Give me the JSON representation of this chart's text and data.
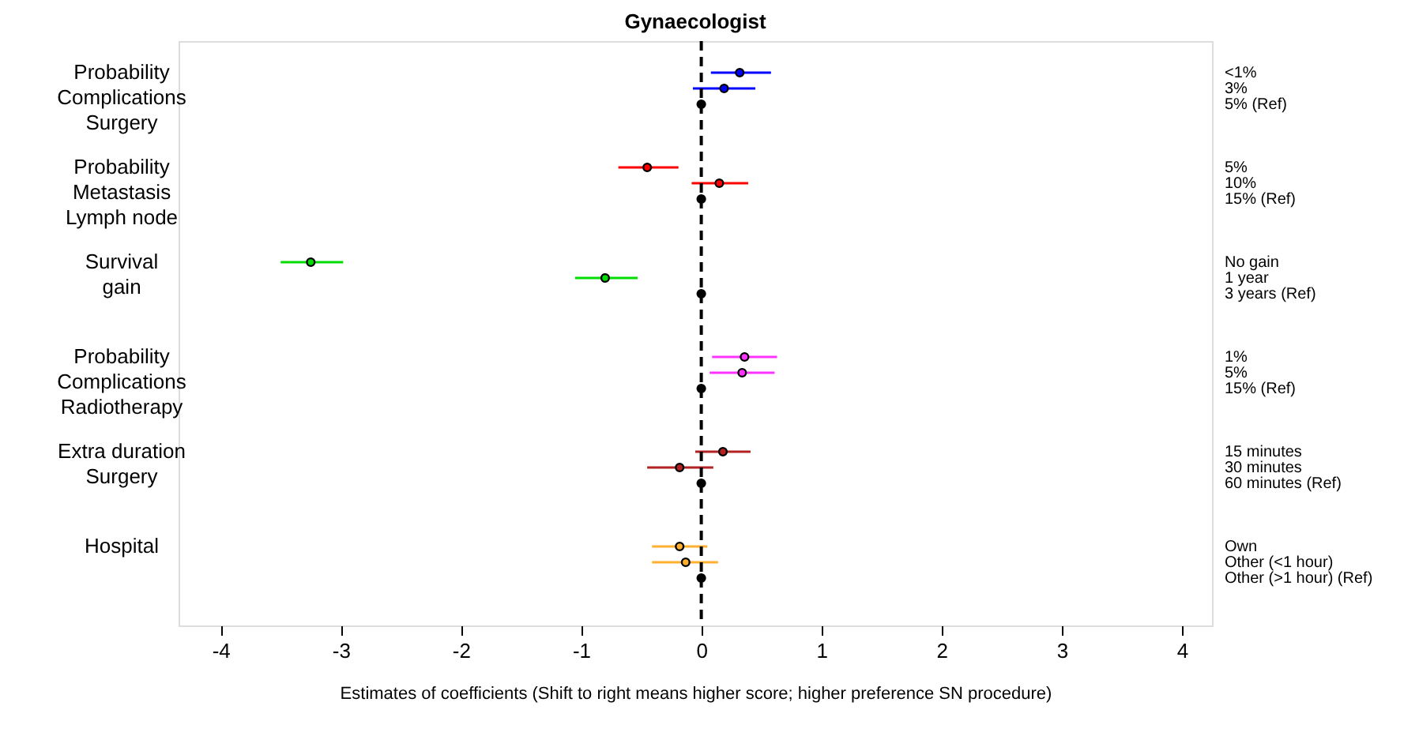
{
  "chart_data": {
    "type": "scatter",
    "orientation": "horizontal",
    "title": "Gynaecologist",
    "xlabel": "Estimates of coefficients (Shift to right means higher score; higher preference SN procedure)",
    "categories": [
      "<1%",
      "3%",
      "5% (Ref)",
      "5%",
      "10%",
      "15% (Ref)",
      "No gain",
      "1 year",
      "3 years (Ref)",
      "1%",
      "5%",
      "15% (Ref)",
      "15 minutes",
      "30 minutes",
      "60 minutes (Ref)",
      "Own",
      "Other (<1 hour)",
      "Other (>1 hour) (Ref)"
    ],
    "series": [
      {
        "color": "#0000ff",
        "values": [
          0.32,
          0.19,
          null,
          null,
          null,
          null,
          null,
          null,
          null,
          null,
          null,
          null,
          null,
          null,
          null,
          null,
          null,
          null
        ],
        "errors": [
          [
            0.08,
            0.58
          ],
          [
            -0.07,
            0.45
          ],
          null,
          null,
          null,
          null,
          null,
          null,
          null,
          null,
          null,
          null,
          null,
          null,
          null,
          null,
          null,
          null
        ]
      },
      {
        "color": "#ff0000",
        "values": [
          null,
          null,
          null,
          -0.45,
          0.15,
          null,
          null,
          null,
          null,
          null,
          null,
          null,
          null,
          null,
          null,
          null,
          null,
          null
        ],
        "errors": [
          null,
          null,
          null,
          [
            -0.69,
            -0.19
          ],
          [
            -0.08,
            0.39
          ],
          null,
          null,
          null,
          null,
          null,
          null,
          null,
          null,
          null,
          null,
          null,
          null,
          null
        ]
      },
      {
        "color": "#00dd00",
        "values": [
          null,
          null,
          null,
          null,
          null,
          null,
          -3.25,
          -0.8,
          null,
          null,
          null,
          null,
          null,
          null,
          null,
          null,
          null,
          null
        ],
        "errors": [
          null,
          null,
          null,
          null,
          null,
          null,
          [
            -3.5,
            -2.98
          ],
          [
            -1.05,
            -0.53
          ],
          null,
          null,
          null,
          null,
          null,
          null,
          null,
          null,
          null,
          null
        ]
      },
      {
        "color": "#ff33ff",
        "values": [
          null,
          null,
          null,
          null,
          null,
          null,
          null,
          null,
          null,
          0.36,
          0.34,
          null,
          null,
          null,
          null,
          null,
          null,
          null
        ],
        "errors": [
          null,
          null,
          null,
          null,
          null,
          null,
          null,
          null,
          null,
          [
            0.09,
            0.63
          ],
          [
            0.07,
            0.61
          ],
          null,
          null,
          null,
          null,
          null,
          null,
          null
        ]
      },
      {
        "color": "#b22222",
        "values": [
          null,
          null,
          null,
          null,
          null,
          null,
          null,
          null,
          null,
          null,
          null,
          null,
          0.18,
          -0.18,
          null,
          null,
          null,
          null
        ],
        "errors": [
          null,
          null,
          null,
          null,
          null,
          null,
          null,
          null,
          null,
          null,
          null,
          null,
          [
            -0.05,
            0.41
          ],
          [
            -0.45,
            0.1
          ],
          null,
          null,
          null,
          null
        ]
      },
      {
        "color": "#ffb030",
        "values": [
          null,
          null,
          null,
          null,
          null,
          null,
          null,
          null,
          null,
          null,
          null,
          null,
          null,
          null,
          null,
          -0.18,
          -0.13,
          null
        ],
        "errors": [
          null,
          null,
          null,
          null,
          null,
          null,
          null,
          null,
          null,
          null,
          null,
          null,
          null,
          null,
          null,
          [
            -0.41,
            0.05
          ],
          [
            -0.41,
            0.14
          ],
          null
        ]
      },
      {
        "color": "#000000",
        "values": [
          null,
          null,
          0,
          null,
          null,
          0,
          null,
          null,
          0,
          null,
          null,
          0,
          null,
          null,
          0,
          null,
          null,
          0
        ]
      }
    ],
    "xlim": [
      -4.35,
      4.25
    ],
    "xticks": [
      {
        "value": -4,
        "label": "-4"
      },
      {
        "value": -3,
        "label": "-3"
      },
      {
        "value": -2,
        "label": "-2"
      },
      {
        "value": -1,
        "label": "-1"
      },
      0,
      1,
      2,
      3,
      4
    ],
    "ref_lines": [
      {
        "axis": "x",
        "value": 0,
        "color": "#000000",
        "line_style": "dashed"
      }
    ],
    "annotations": [
      "Probability\nComplications\nSurgery",
      "Probability\nMetastasis\nLymph node",
      "Survival\ngain",
      "Probability\nComplications\nRadiotherapy",
      "Extra duration\nSurgery",
      "Hospital"
    ],
    "marker": "circle",
    "grid": false
  }
}
